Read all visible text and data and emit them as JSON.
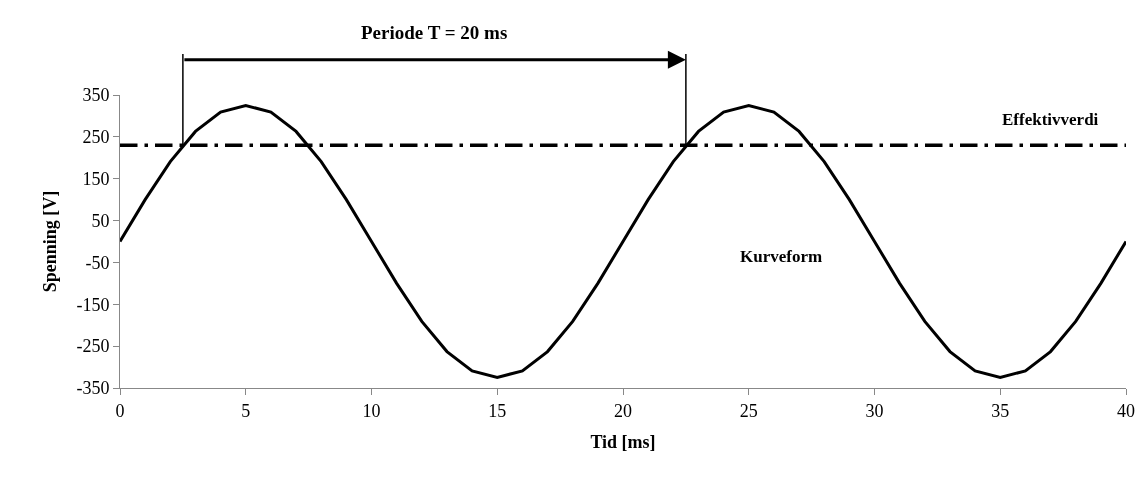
{
  "chart_data": {
    "type": "line",
    "title": "Periode T = 20 ms",
    "xlabel": "Tid [ms]",
    "ylabel": "Spenning [V]",
    "x": [
      0,
      1,
      2,
      3,
      4,
      5,
      6,
      7,
      8,
      9,
      10,
      11,
      12,
      13,
      14,
      15,
      16,
      17,
      18,
      19,
      20,
      21,
      22,
      23,
      24,
      25,
      26,
      27,
      28,
      29,
      30,
      31,
      32,
      33,
      34,
      35,
      36,
      37,
      38,
      39,
      40
    ],
    "series": [
      {
        "color": "#000000",
        "values": [
          0,
          100,
          191,
          263,
          309,
          325,
          309,
          263,
          191,
          100,
          0,
          -100,
          -191,
          -263,
          -309,
          -325,
          -309,
          -263,
          -191,
          -100,
          0,
          100,
          191,
          263,
          309,
          325,
          309,
          263,
          191,
          100,
          0,
          -100,
          -191,
          -263,
          -309,
          -325,
          -309,
          -263,
          -191,
          -100,
          0
        ]
      }
    ],
    "xlim": [
      0,
      40
    ],
    "xticks": [
      0,
      5,
      10,
      15,
      20,
      25,
      30,
      35,
      40
    ],
    "ylim": [
      -350,
      350
    ],
    "yticks": [
      -350,
      -250,
      -150,
      -50,
      50,
      150,
      250,
      350
    ],
    "ref_lines": [
      {
        "axis": "y",
        "value": 230,
        "label": "Effektivverdi",
        "color": "#000000",
        "line_style": "dashdot"
      },
      {
        "axis": "x",
        "value": 2.5,
        "color": "#000000",
        "line_style": "solid"
      },
      {
        "axis": "x",
        "value": 22.5,
        "color": "#000000",
        "line_style": "solid"
      }
    ],
    "annotations": [
      "Kurveform"
    ],
    "marker": "none",
    "line_style": "solid"
  }
}
